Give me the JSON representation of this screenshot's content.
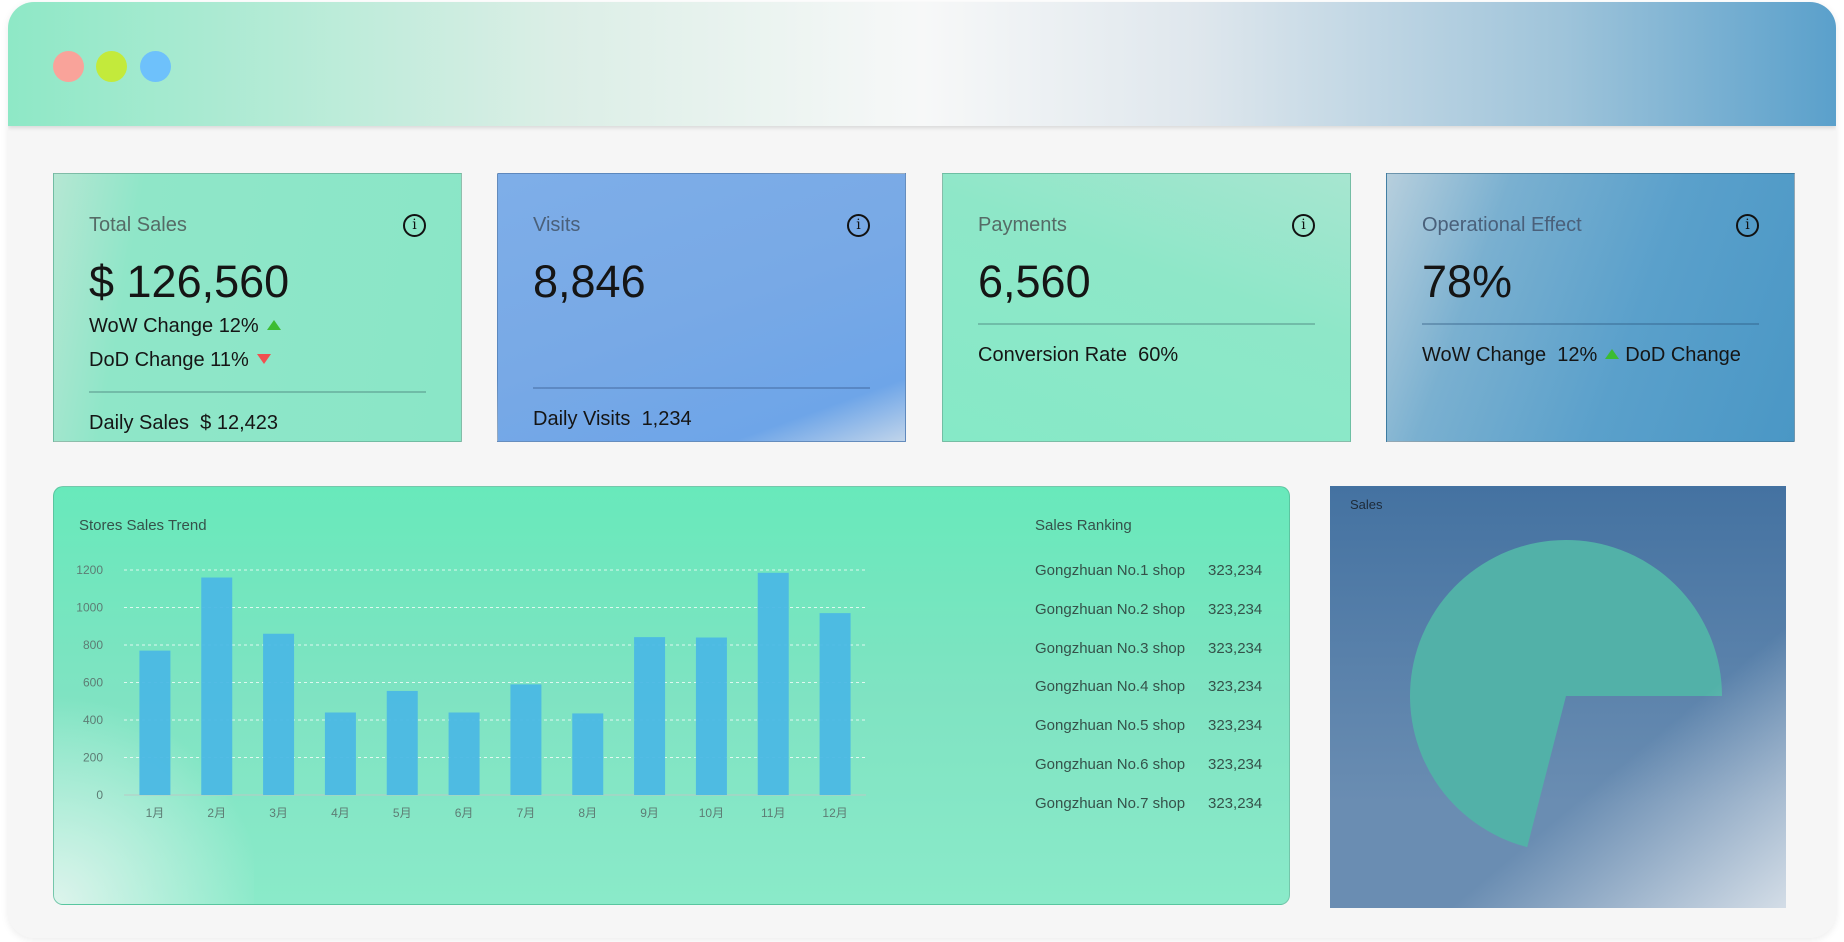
{
  "window": {
    "controls": [
      {
        "name": "close",
        "color": "#f9a39a"
      },
      {
        "name": "minimize",
        "color": "#c3ea3b"
      },
      {
        "name": "maximize",
        "color": "#6ec1fb"
      }
    ]
  },
  "cards": [
    {
      "title": "Total Sales",
      "value": "$ 126,560",
      "wow": "WoW Change 12%",
      "dod": "DoD Change 11%",
      "footer_label": "Daily Sales",
      "footer_value": "$ 12,423"
    },
    {
      "title": "Visits",
      "value": "8,846",
      "footer_label": "Daily Visits",
      "footer_value": "1,234"
    },
    {
      "title": "Payments",
      "value": "6,560",
      "footer_label": "Conversion Rate",
      "footer_value": "60%"
    },
    {
      "title": "Operational Effect",
      "value": "78%",
      "wow_label": "WoW Change",
      "wow_value": "12%",
      "dod_label": "DoD Change"
    }
  ],
  "info_icon": "info-circle-icon",
  "trend_colors": {
    "up": "#3cbc32",
    "down": "#f05050"
  },
  "ranking": {
    "title": "Sales Ranking",
    "items": [
      {
        "name": "Gongzhuan No.1 shop",
        "value": "323,234"
      },
      {
        "name": "Gongzhuan No.2 shop",
        "value": "323,234"
      },
      {
        "name": "Gongzhuan No.3 shop",
        "value": "323,234"
      },
      {
        "name": "Gongzhuan No.4 shop",
        "value": "323,234"
      },
      {
        "name": "Gongzhuan No.5 shop",
        "value": "323,234"
      },
      {
        "name": "Gongzhuan No.6 shop",
        "value": "323,234"
      },
      {
        "name": "Gongzhuan No.7 shop",
        "value": "323,234"
      }
    ]
  },
  "chart_data": [
    {
      "type": "bar",
      "title": "Stores Sales Trend",
      "categories": [
        "1月",
        "2月",
        "3月",
        "4月",
        "5月",
        "6月",
        "7月",
        "8月",
        "9月",
        "10月",
        "11月",
        "12月"
      ],
      "values": [
        770,
        1160,
        860,
        440,
        555,
        440,
        590,
        435,
        842,
        840,
        1185,
        970
      ],
      "ylim": [
        0,
        1200
      ],
      "yticks": [
        0,
        200,
        400,
        600,
        800,
        1000,
        1200
      ],
      "grid": true,
      "bar_color": "#4bb8e4"
    },
    {
      "type": "pie",
      "title": "Sales",
      "slices": [
        {
          "value": 71,
          "color": "#52b1a8"
        }
      ],
      "start": "3 o'clock, counter-clockwise"
    }
  ]
}
